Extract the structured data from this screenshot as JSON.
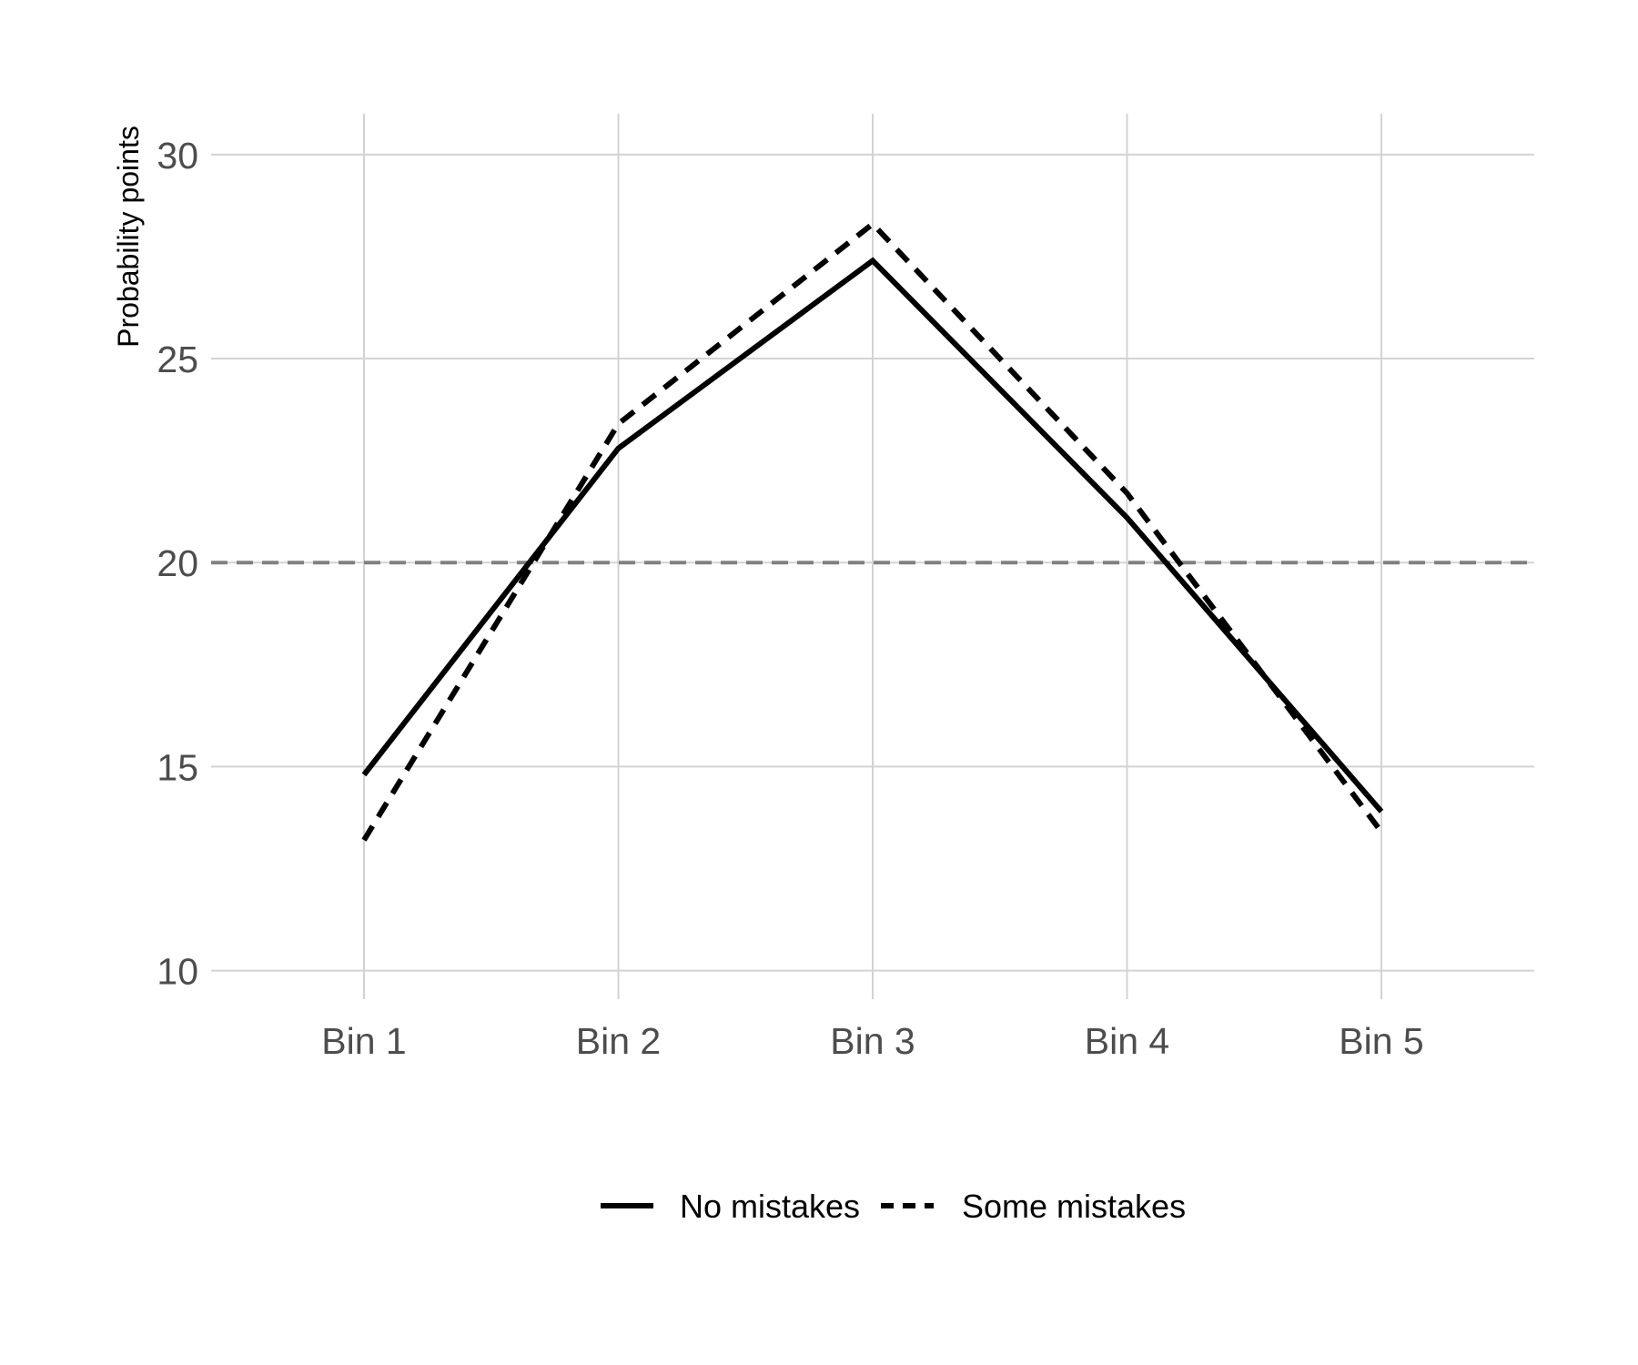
{
  "chart_data": {
    "type": "line",
    "title": "",
    "xlabel": "",
    "ylabel": "Probability points",
    "categories": [
      "Bin 1",
      "Bin 2",
      "Bin 3",
      "Bin 4",
      "Bin 5"
    ],
    "ylim": [
      9.3,
      31
    ],
    "yticks": [
      10,
      15,
      20,
      25,
      30
    ],
    "grid": true,
    "reference_line": {
      "y": 20,
      "style": "dashed",
      "color": "#808080"
    },
    "legend_position": "bottom",
    "series": [
      {
        "name": "No mistakes",
        "line_style": "solid",
        "color": "#000000",
        "values": [
          14.8,
          22.8,
          27.4,
          21.1,
          13.9
        ]
      },
      {
        "name": "Some mistakes",
        "line_style": "dashed",
        "color": "#000000",
        "values": [
          13.2,
          23.4,
          28.3,
          21.7,
          13.4
        ]
      }
    ]
  }
}
